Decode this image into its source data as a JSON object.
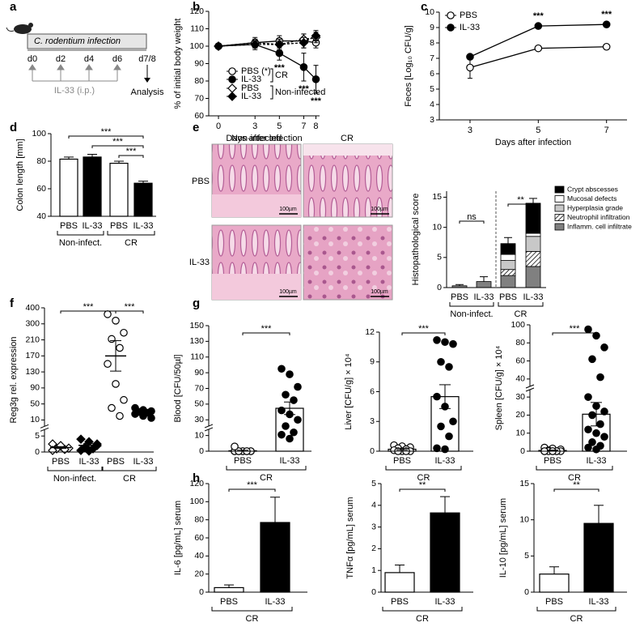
{
  "diagram": {
    "panel": "a",
    "bar_label": "C. rodentium infection",
    "days": [
      "d0",
      "d2",
      "d4",
      "d6"
    ],
    "end_day": "d7/8",
    "treatment": "IL-33 (i.p.)",
    "endpoint": "Analysis"
  },
  "micrographs": {
    "panel": "e",
    "columns": [
      "Non-infected",
      "CR"
    ],
    "rows": [
      "PBS",
      "IL-33"
    ],
    "scale_bar": "100µm"
  },
  "chart_data": [
    {
      "panel": "b",
      "type": "line",
      "ylabel": "% of initial body weight",
      "xlabel": "Days after infection",
      "x": [
        0,
        3,
        5,
        7,
        8
      ],
      "xlim": [
        -0.8,
        8.3
      ],
      "xticks": [
        0,
        3,
        5,
        7,
        8
      ],
      "ylim": [
        60,
        120
      ],
      "yticks": [
        60,
        70,
        80,
        90,
        100,
        110,
        120
      ],
      "series": [
        {
          "name": "PBS (*)",
          "marker": "circle",
          "fill": "#ffffff",
          "dashed": false,
          "values": [
            100,
            102,
            103,
            103,
            102
          ],
          "errors": [
            0,
            3,
            3,
            4,
            3
          ]
        },
        {
          "name": "IL-33",
          "marker": "circle",
          "fill": "#000000",
          "dashed": false,
          "values": [
            100,
            101,
            96,
            88,
            81
          ],
          "errors": [
            0,
            3,
            4,
            8,
            8
          ]
        },
        {
          "name": "PBS",
          "marker": "diamond",
          "fill": "#ffffff",
          "dashed": true,
          "values": [
            100,
            102,
            101,
            104,
            105
          ],
          "errors": [
            0,
            2,
            3,
            3,
            3
          ]
        },
        {
          "name": "IL-33",
          "marker": "diamond",
          "fill": "#000000",
          "dashed": true,
          "values": [
            100,
            101,
            101,
            102,
            106
          ],
          "errors": [
            0,
            2,
            2,
            3,
            3
          ]
        }
      ],
      "legend_groups": [
        {
          "label": "CR",
          "series": [
            0,
            1
          ]
        },
        {
          "label": "Non-infected",
          "series": [
            2,
            3
          ]
        }
      ],
      "annotations": [
        {
          "x": 5,
          "label": "***"
        },
        {
          "x": 7,
          "label": "***"
        },
        {
          "x": 8,
          "label": "***"
        }
      ]
    },
    {
      "panel": "c",
      "type": "line",
      "ylabel": "Feces [Log₁₀ CFU/g]",
      "xlabel": "Days after infection",
      "x": [
        3,
        5,
        7
      ],
      "xlim": [
        2.1,
        7.6
      ],
      "xticks": [
        3,
        5,
        7
      ],
      "ylim": [
        3,
        10
      ],
      "yticks": [
        3,
        4,
        5,
        6,
        7,
        8,
        9,
        10
      ],
      "series": [
        {
          "name": "PBS",
          "marker": "circle",
          "fill": "#ffffff",
          "dashed": false,
          "values": [
            6.4,
            7.65,
            7.75
          ],
          "errors": [
            0.7,
            0.1,
            0.15
          ]
        },
        {
          "name": "IL-33",
          "marker": "circle",
          "fill": "#000000",
          "dashed": false,
          "values": [
            7.1,
            9.1,
            9.2
          ],
          "errors": [
            0.15,
            0.1,
            0.1
          ]
        }
      ],
      "annotations": [
        {
          "x": 5,
          "label": "***"
        },
        {
          "x": 7,
          "label": "***"
        }
      ]
    },
    {
      "panel": "d",
      "type": "bar",
      "ylabel": "Colon length [mm]",
      "categories": [
        "PBS",
        "IL-33",
        "PBS",
        "IL-33"
      ],
      "values": [
        81.5,
        83,
        78.5,
        64
      ],
      "errors": [
        1.5,
        2,
        1.5,
        1.5
      ],
      "colors": [
        "#ffffff",
        "#000000",
        "#ffffff",
        "#000000"
      ],
      "ylim": [
        40,
        100
      ],
      "yticks": [
        40,
        60,
        80,
        100
      ],
      "groups": [
        {
          "label": "Non-infect.",
          "members": [
            0,
            1
          ]
        },
        {
          "label": "CR",
          "members": [
            2,
            3
          ]
        }
      ],
      "brackets": [
        {
          "between": [
            0,
            3
          ],
          "label": "***"
        },
        {
          "between": [
            1,
            3
          ],
          "label": "***"
        },
        {
          "between": [
            2,
            3
          ],
          "label": "***"
        }
      ]
    },
    {
      "type": "stacked_bar",
      "ylabel": "Histopathological score",
      "categories": [
        "PBS",
        "IL-33",
        "PBS",
        "IL-33"
      ],
      "ylim": [
        0,
        16
      ],
      "yticks": [
        0,
        5,
        10,
        15
      ],
      "series": [
        {
          "name": "Inflamm. cell infiltrate",
          "fill": "#808080",
          "values": [
            0.3,
            1.0,
            2.0,
            3.5
          ]
        },
        {
          "name": "Neutrophil infiltration",
          "fill": "hatch",
          "values": [
            0,
            0,
            1.0,
            2.5
          ]
        },
        {
          "name": "Hyperplasia grade",
          "fill": "#c8c8c8",
          "values": [
            0,
            0,
            1.5,
            2.5
          ]
        },
        {
          "name": "Mucosal defects",
          "fill": "#ffffff",
          "values": [
            0,
            0,
            1.0,
            0.5
          ]
        },
        {
          "name": "Crypt abscesses",
          "fill": "#000000",
          "values": [
            0,
            0,
            1.8,
            5.0
          ]
        }
      ],
      "errors": [
        0.2,
        0.8,
        1.0,
        0.8
      ],
      "groups": [
        {
          "label": "Non-infect.",
          "members": [
            0,
            1
          ]
        },
        {
          "label": "CR",
          "members": [
            2,
            3
          ]
        }
      ],
      "brackets": [
        {
          "between": [
            0,
            1
          ],
          "label": "ns"
        },
        {
          "between": [
            2,
            3
          ],
          "label": "**"
        }
      ]
    },
    {
      "panel": "f",
      "type": "dotplot",
      "ylabel": "Reg3g rel. expression",
      "categories": [
        "PBS",
        "IL-33",
        "PBS",
        "IL-33"
      ],
      "ylim": [
        0,
        400
      ],
      "yticks": [
        0,
        5,
        10,
        50,
        90,
        130,
        170,
        210,
        300,
        400
      ],
      "ybreak": [
        5,
        10
      ],
      "points": [
        [
          2.5,
          1.8,
          1.2,
          1.0,
          0.8,
          0.5,
          2.0
        ],
        [
          4.0,
          3.2,
          2.5,
          1.5,
          1.0,
          0.5,
          0.3,
          2.0
        ],
        [
          360,
          320,
          250,
          215,
          190,
          150,
          100,
          60,
          40,
          20
        ],
        [
          40,
          35,
          32,
          30,
          28,
          25,
          20,
          15
        ]
      ],
      "means": [
        1.4,
        2.1,
        170,
        28
      ],
      "errors": [
        0.3,
        0.5,
        38,
        3
      ],
      "markers": [
        "diamond",
        "diamond",
        "circle",
        "circle"
      ],
      "fills": [
        "#ffffff",
        "#000000",
        "#ffffff",
        "#000000"
      ],
      "bars": false,
      "groups": [
        {
          "label": "Non-infect.",
          "members": [
            0,
            1
          ]
        },
        {
          "label": "CR",
          "members": [
            2,
            3
          ]
        }
      ],
      "brackets": [
        {
          "between": [
            0,
            2
          ],
          "label": "***"
        },
        {
          "between": [
            2,
            3
          ],
          "label": "***"
        }
      ]
    },
    {
      "panel": "g",
      "type": "dotplot",
      "ylabel": "Blood [CFU/50µl]",
      "categories": [
        "PBS",
        "IL-33"
      ],
      "ylim": [
        0,
        150
      ],
      "yticks": [
        0,
        10,
        30,
        50,
        70,
        90,
        110,
        130,
        150
      ],
      "ybreak": [
        10,
        30
      ],
      "points": [
        [
          0,
          0,
          0,
          0,
          0,
          0,
          0,
          0,
          0,
          0,
          3
        ],
        [
          95,
          88,
          72,
          62,
          55,
          42,
          37,
          30,
          22,
          14,
          11,
          8
        ]
      ],
      "means": [
        0.3,
        44.7
      ],
      "errors": [
        0.3,
        8
      ],
      "markers": [
        "circle",
        "circle"
      ],
      "fills": [
        "#ffffff",
        "#000000"
      ],
      "bars": true,
      "groups": [
        {
          "label": "CR",
          "members": [
            0,
            1
          ]
        }
      ],
      "brackets": [
        {
          "between": [
            0,
            1
          ],
          "label": "***"
        }
      ]
    },
    {
      "type": "dotplot",
      "ylabel": "Liver [CFU/g] × 10⁴",
      "categories": [
        "PBS",
        "IL-33"
      ],
      "ylim": [
        0,
        12
      ],
      "yticks": [
        0,
        3,
        6,
        9,
        12
      ],
      "points": [
        [
          0.6,
          0.5,
          0.4,
          0.3,
          0.2,
          0.1,
          0,
          0,
          0,
          0
        ],
        [
          11.2,
          11.0,
          10.8,
          9.0,
          8.5,
          5.5,
          4.5,
          3.0,
          2.5,
          1.5,
          0.3,
          0.2
        ]
      ],
      "means": [
        0.2,
        5.5
      ],
      "errors": [
        0.07,
        1.2
      ],
      "markers": [
        "circle",
        "circle"
      ],
      "fills": [
        "#ffffff",
        "#000000"
      ],
      "bars": true,
      "groups": [
        {
          "label": "CR",
          "members": [
            0,
            1
          ]
        }
      ],
      "brackets": [
        {
          "between": [
            0,
            1
          ],
          "label": "***"
        }
      ]
    },
    {
      "type": "dotplot",
      "ylabel": "Spleen [CFU/g] × 10⁴",
      "categories": [
        "PBS",
        "IL-33"
      ],
      "ylim": [
        0,
        100
      ],
      "yticks": [
        0,
        10,
        20,
        30,
        40,
        60,
        80,
        100
      ],
      "ybreak": [
        30,
        40
      ],
      "points": [
        [
          2,
          1.5,
          1,
          0.5,
          0,
          0,
          0,
          0,
          0,
          0,
          0,
          0
        ],
        [
          95,
          88,
          75,
          62,
          42,
          30,
          25,
          22,
          20,
          15,
          12,
          10,
          8,
          5,
          3,
          2,
          1
        ]
      ],
      "means": [
        0.4,
        20.5
      ],
      "errors": [
        0.2,
        6.5
      ],
      "markers": [
        "circle",
        "circle"
      ],
      "fills": [
        "#ffffff",
        "#000000"
      ],
      "bars": true,
      "groups": [
        {
          "label": "CR",
          "members": [
            0,
            1
          ]
        }
      ],
      "brackets": [
        {
          "between": [
            0,
            1
          ],
          "label": "***"
        }
      ]
    },
    {
      "panel": "h",
      "type": "bar",
      "ylabel": "IL-6 [pg/mL] serum",
      "categories": [
        "PBS",
        "IL-33"
      ],
      "values": [
        5,
        77
      ],
      "errors": [
        3,
        28
      ],
      "colors": [
        "#ffffff",
        "#000000"
      ],
      "ylim": [
        0,
        120
      ],
      "yticks": [
        0,
        20,
        40,
        60,
        80,
        100,
        120
      ],
      "groups": [
        {
          "label": "CR",
          "members": [
            0,
            1
          ]
        }
      ],
      "brackets": [
        {
          "between": [
            0,
            1
          ],
          "label": "***"
        }
      ]
    },
    {
      "type": "bar",
      "ylabel": "TNFα [pg/mL] serum",
      "categories": [
        "PBS",
        "IL-33"
      ],
      "values": [
        0.9,
        3.65
      ],
      "errors": [
        0.35,
        0.75
      ],
      "colors": [
        "#ffffff",
        "#000000"
      ],
      "ylim": [
        0,
        5
      ],
      "yticks": [
        0,
        1,
        2,
        3,
        4,
        5
      ],
      "groups": [
        {
          "label": "CR",
          "members": [
            0,
            1
          ]
        }
      ],
      "brackets": [
        {
          "between": [
            0,
            1
          ],
          "label": "**"
        }
      ]
    },
    {
      "type": "bar",
      "ylabel": "IL-10 [pg/mL] serum",
      "categories": [
        "PBS",
        "IL-33"
      ],
      "values": [
        2.5,
        9.5
      ],
      "errors": [
        1,
        2.5
      ],
      "colors": [
        "#ffffff",
        "#000000"
      ],
      "ylim": [
        0,
        15
      ],
      "yticks": [
        0,
        5,
        10,
        15
      ],
      "groups": [
        {
          "label": "CR",
          "members": [
            0,
            1
          ]
        }
      ],
      "brackets": [
        {
          "between": [
            0,
            1
          ],
          "label": "**"
        }
      ]
    }
  ]
}
